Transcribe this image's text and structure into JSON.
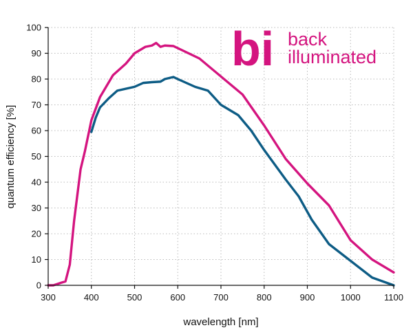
{
  "chart_data": {
    "type": "line",
    "xlabel": "wavelength [nm]",
    "ylabel": "quantum efficiency [%]",
    "xlim": [
      300,
      1100
    ],
    "ylim": [
      0,
      100
    ],
    "xticks": [
      300,
      400,
      500,
      600,
      700,
      800,
      900,
      1000,
      1100
    ],
    "yticks": [
      0,
      10,
      20,
      30,
      40,
      50,
      60,
      70,
      80,
      90,
      100
    ],
    "grid": true,
    "colors": {
      "series_0": "#d4147f",
      "series_1": "#0d5c85",
      "logo": "#d4147f"
    },
    "logo": {
      "mark": "bi",
      "line1": "back",
      "line2": "illuminated"
    },
    "series": [
      {
        "x": [
          300,
          312,
          330,
          340,
          350,
          360,
          375,
          385,
          400,
          420,
          450,
          480,
          500,
          510,
          525,
          540,
          550,
          560,
          570,
          590,
          600,
          650,
          700,
          750,
          800,
          850,
          900,
          950,
          1000,
          1050,
          1100
        ],
        "values": [
          0,
          0,
          1,
          1.5,
          8,
          25,
          45,
          52,
          64,
          73,
          81.5,
          86,
          90,
          91,
          92.5,
          93,
          94,
          92.5,
          93,
          92.8,
          92,
          88,
          81,
          74,
          62,
          49,
          39.5,
          31,
          17.5,
          10,
          5
        ]
      },
      {
        "x": [
          400,
          410,
          420,
          440,
          460,
          500,
          520,
          540,
          560,
          570,
          590,
          600,
          640,
          670,
          700,
          740,
          770,
          800,
          850,
          880,
          910,
          950,
          1000,
          1050,
          1100
        ],
        "values": [
          59.5,
          65,
          69,
          72.5,
          75.5,
          77,
          78.5,
          78.8,
          79,
          80,
          80.8,
          80,
          77,
          75.5,
          70,
          66,
          60,
          52.5,
          41,
          34.5,
          25.5,
          16,
          9.5,
          3,
          0
        ]
      }
    ]
  }
}
